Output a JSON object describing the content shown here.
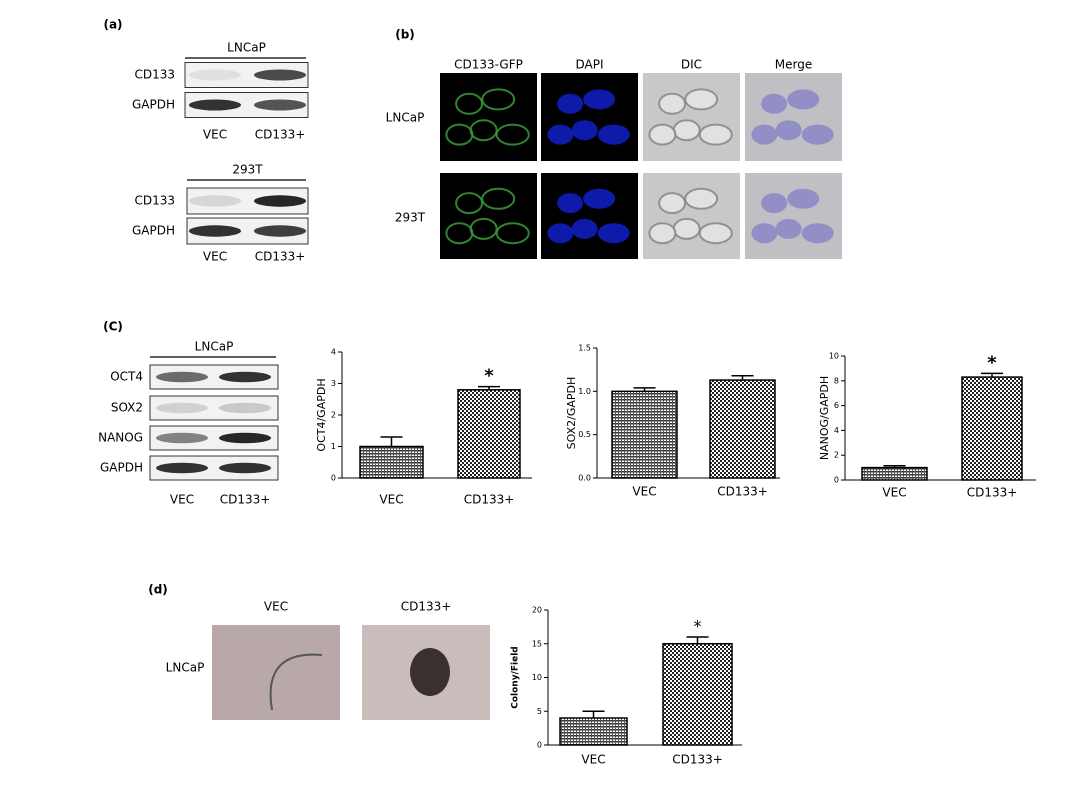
{
  "panel_a": {
    "label": "(a)",
    "blots": [
      {
        "title": "LNCaP",
        "rows": [
          "CD133",
          "GAPDH"
        ],
        "lanes": [
          "VEC",
          "CD133+"
        ]
      },
      {
        "title": "293T",
        "rows": [
          "CD133",
          "GAPDH"
        ],
        "lanes": [
          "VEC",
          "CD133+"
        ]
      }
    ]
  },
  "panel_b": {
    "label": "(b)",
    "columns": [
      "CD133-GFP",
      "DAPI",
      "DIC",
      "Merge"
    ],
    "rows": [
      "LNCaP",
      "293T"
    ]
  },
  "panel_c": {
    "label": "(C)",
    "blot": {
      "title": "LNCaP",
      "rows": [
        "OCT4",
        "SOX2",
        "NANOG",
        "GAPDH"
      ],
      "lanes": [
        "VEC",
        "CD133+"
      ]
    }
  },
  "panel_d": {
    "label": "(d)",
    "columns": [
      "VEC",
      "CD133+"
    ],
    "rows": [
      "LNCaP"
    ]
  },
  "chart_data": [
    {
      "type": "bar",
      "ylabel": "OCT4/GAPDH",
      "categories": [
        "VEC",
        "CD133+"
      ],
      "values": [
        1,
        2.8
      ],
      "errors": [
        0.3,
        0.1
      ],
      "markers": [
        null,
        "*"
      ],
      "ylim": [
        0,
        4
      ],
      "yticks": [
        0,
        1,
        2,
        3,
        4
      ]
    },
    {
      "type": "bar",
      "ylabel": "SOX2/GAPDH",
      "categories": [
        "VEC",
        "CD133+"
      ],
      "values": [
        1.0,
        1.13
      ],
      "errors": [
        0.04,
        0.05
      ],
      "markers": [
        null,
        null
      ],
      "ylim": [
        0,
        1.5
      ],
      "yticks": [
        {
          "value": 0,
          "label": "0.0"
        },
        0.5,
        {
          "value": 1,
          "label": "1.0"
        },
        1.5
      ]
    },
    {
      "type": "bar",
      "ylabel": "NANOG/GAPDH",
      "categories": [
        "VEC",
        "CD133+"
      ],
      "values": [
        1,
        8.3
      ],
      "errors": [
        0.15,
        0.3
      ],
      "markers": [
        null,
        "*"
      ],
      "ylim": [
        0,
        10
      ],
      "yticks": [
        0,
        2,
        4,
        6,
        8,
        10
      ]
    },
    {
      "type": "bar",
      "ylabel": "Colony/Field",
      "categories": [
        "VEC",
        "CD133+"
      ],
      "values": [
        4,
        15
      ],
      "errors": [
        1,
        1
      ],
      "markers": [
        null,
        "*"
      ],
      "ylim": [
        0,
        20
      ],
      "yticks": [
        0,
        5,
        10,
        15,
        20
      ]
    }
  ]
}
